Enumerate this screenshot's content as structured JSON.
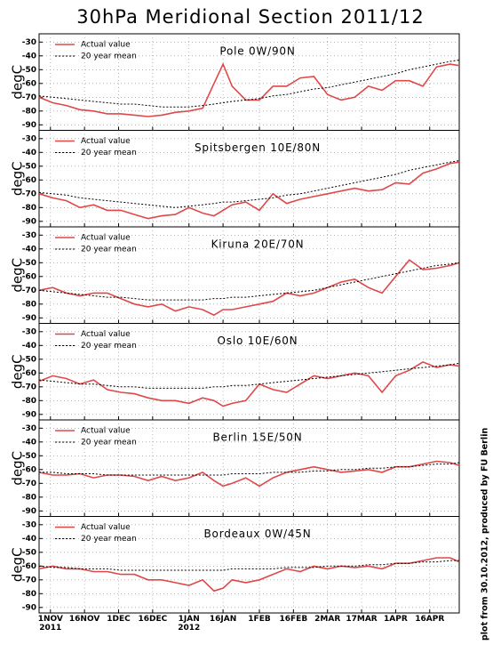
{
  "title": "30hPa Meridional Section 2011/12",
  "credit": "plot from 30.10.2012, produced by FU Berlin",
  "chart_data": [
    {
      "type": "line",
      "title": "Pole 0W/90N",
      "ylabel": "degC",
      "legend": "upper left",
      "grid": true,
      "x": [
        "2011-10-27",
        "2011-11-02",
        "2011-11-08",
        "2011-11-14",
        "2011-11-20",
        "2011-11-26",
        "2011-12-02",
        "2011-12-08",
        "2011-12-14",
        "2011-12-20",
        "2011-12-26",
        "2012-01-01",
        "2012-01-07",
        "2012-01-12",
        "2012-01-16",
        "2012-01-20",
        "2012-01-26",
        "2012-02-01",
        "2012-02-07",
        "2012-02-13",
        "2012-02-19",
        "2012-02-25",
        "2012-03-02",
        "2012-03-08",
        "2012-03-14",
        "2012-03-20",
        "2012-03-26",
        "2012-04-01",
        "2012-04-07",
        "2012-04-13",
        "2012-04-19",
        "2012-04-25",
        "2012-04-29"
      ],
      "xlim": [
        "2011-10-27",
        "2012-04-29"
      ],
      "xticks": [
        "2011-11-01",
        "2011-11-16",
        "2011-12-01",
        "2011-12-16",
        "2012-01-01",
        "2012-01-16",
        "2012-02-01",
        "2012-02-16",
        "2012-03-02",
        "2012-03-17",
        "2012-04-01",
        "2012-04-16"
      ],
      "ylim": [
        -94,
        -24
      ],
      "yticks": [
        -90,
        -80,
        -70,
        -60,
        -50,
        -40,
        -30
      ],
      "series": [
        {
          "name": "Actual value",
          "color": "#e04848",
          "linestyle": "solid",
          "values": [
            -70,
            -74,
            -76,
            -79,
            -80,
            -82,
            -82,
            -83,
            -84,
            -83,
            -81,
            -80,
            -78,
            -60,
            -46,
            -62,
            -72,
            -72,
            -62,
            -62,
            -56,
            -55,
            -68,
            -72,
            -70,
            -62,
            -65,
            -58,
            -58,
            -62,
            -48,
            -46,
            -47
          ]
        },
        {
          "name": "20 year mean",
          "color": "#000000",
          "linestyle": "dashed",
          "values": [
            -69,
            -70,
            -71,
            -72,
            -73,
            -74,
            -75,
            -75,
            -76,
            -77,
            -77,
            -77,
            -76,
            -75,
            -74,
            -73,
            -72,
            -71,
            -69,
            -68,
            -66,
            -64,
            -63,
            -61,
            -59,
            -57,
            -55,
            -53,
            -50,
            -48,
            -46,
            -44,
            -43
          ]
        }
      ]
    },
    {
      "type": "line",
      "title": "Spitsbergen 10E/80N",
      "ylabel": "degC",
      "legend": "upper left",
      "grid": true,
      "x": [
        "2011-10-27",
        "2011-11-02",
        "2011-11-08",
        "2011-11-14",
        "2011-11-20",
        "2011-11-26",
        "2011-12-02",
        "2011-12-08",
        "2011-12-14",
        "2011-12-20",
        "2011-12-26",
        "2012-01-01",
        "2012-01-07",
        "2012-01-12",
        "2012-01-16",
        "2012-01-20",
        "2012-01-26",
        "2012-02-01",
        "2012-02-07",
        "2012-02-13",
        "2012-02-19",
        "2012-02-25",
        "2012-03-02",
        "2012-03-08",
        "2012-03-14",
        "2012-03-20",
        "2012-03-26",
        "2012-04-01",
        "2012-04-07",
        "2012-04-13",
        "2012-04-19",
        "2012-04-25",
        "2012-04-29"
      ],
      "xlim": [
        "2011-10-27",
        "2012-04-29"
      ],
      "xticks": [
        "2011-11-01",
        "2011-11-16",
        "2011-12-01",
        "2011-12-16",
        "2012-01-01",
        "2012-01-16",
        "2012-02-01",
        "2012-02-16",
        "2012-03-02",
        "2012-03-17",
        "2012-04-01",
        "2012-04-16"
      ],
      "ylim": [
        -94,
        -24
      ],
      "yticks": [
        -90,
        -80,
        -70,
        -60,
        -50,
        -40,
        -30
      ],
      "series": [
        {
          "name": "Actual value",
          "color": "#e04848",
          "linestyle": "solid",
          "values": [
            -70,
            -73,
            -75,
            -80,
            -78,
            -82,
            -82,
            -85,
            -88,
            -86,
            -85,
            -80,
            -84,
            -86,
            -82,
            -78,
            -76,
            -82,
            -70,
            -77,
            -74,
            -72,
            -70,
            -68,
            -66,
            -68,
            -67,
            -62,
            -63,
            -55,
            -52,
            -48,
            -47
          ]
        },
        {
          "name": "20 year mean",
          "color": "#000000",
          "linestyle": "dashed",
          "values": [
            -69,
            -70,
            -71,
            -73,
            -74,
            -75,
            -76,
            -77,
            -78,
            -79,
            -80,
            -79,
            -78,
            -77,
            -76,
            -76,
            -75,
            -74,
            -73,
            -71,
            -70,
            -68,
            -66,
            -64,
            -62,
            -60,
            -58,
            -56,
            -53,
            -51,
            -49,
            -47,
            -46
          ]
        }
      ]
    },
    {
      "type": "line",
      "title": "Kiruna 20E/70N",
      "ylabel": "degC",
      "legend": "upper left",
      "grid": true,
      "x": [
        "2011-10-27",
        "2011-11-02",
        "2011-11-08",
        "2011-11-14",
        "2011-11-20",
        "2011-11-26",
        "2011-12-02",
        "2011-12-08",
        "2011-12-14",
        "2011-12-20",
        "2011-12-26",
        "2012-01-01",
        "2012-01-07",
        "2012-01-12",
        "2012-01-16",
        "2012-01-20",
        "2012-01-26",
        "2012-02-01",
        "2012-02-07",
        "2012-02-13",
        "2012-02-19",
        "2012-02-25",
        "2012-03-02",
        "2012-03-08",
        "2012-03-14",
        "2012-03-20",
        "2012-03-26",
        "2012-04-01",
        "2012-04-07",
        "2012-04-13",
        "2012-04-19",
        "2012-04-25",
        "2012-04-29"
      ],
      "xlim": [
        "2011-10-27",
        "2012-04-29"
      ],
      "xticks": [
        "2011-11-01",
        "2011-11-16",
        "2011-12-01",
        "2011-12-16",
        "2012-01-01",
        "2012-01-16",
        "2012-02-01",
        "2012-02-16",
        "2012-03-02",
        "2012-03-17",
        "2012-04-01",
        "2012-04-16"
      ],
      "ylim": [
        -94,
        -24
      ],
      "yticks": [
        -90,
        -80,
        -70,
        -60,
        -50,
        -40,
        -30
      ],
      "series": [
        {
          "name": "Actual value",
          "color": "#e04848",
          "linestyle": "solid",
          "values": [
            -70,
            -68,
            -72,
            -74,
            -72,
            -72,
            -76,
            -80,
            -82,
            -80,
            -85,
            -82,
            -84,
            -88,
            -84,
            -84,
            -82,
            -80,
            -78,
            -72,
            -74,
            -72,
            -68,
            -64,
            -62,
            -68,
            -72,
            -60,
            -48,
            -55,
            -54,
            -52,
            -50
          ]
        },
        {
          "name": "20 year mean",
          "color": "#000000",
          "linestyle": "dashed",
          "values": [
            -70,
            -71,
            -72,
            -73,
            -74,
            -75,
            -75,
            -76,
            -77,
            -77,
            -77,
            -77,
            -77,
            -76,
            -76,
            -75,
            -75,
            -74,
            -73,
            -72,
            -71,
            -70,
            -68,
            -66,
            -64,
            -62,
            -60,
            -58,
            -56,
            -54,
            -52,
            -51,
            -50
          ]
        }
      ]
    },
    {
      "type": "line",
      "title": "Oslo 10E/60N",
      "ylabel": "degC",
      "legend": "upper left",
      "grid": true,
      "x": [
        "2011-10-27",
        "2011-11-02",
        "2011-11-08",
        "2011-11-14",
        "2011-11-20",
        "2011-11-26",
        "2011-12-02",
        "2011-12-08",
        "2011-12-14",
        "2011-12-20",
        "2011-12-26",
        "2012-01-01",
        "2012-01-07",
        "2012-01-12",
        "2012-01-16",
        "2012-01-20",
        "2012-01-26",
        "2012-02-01",
        "2012-02-07",
        "2012-02-13",
        "2012-02-19",
        "2012-02-25",
        "2012-03-02",
        "2012-03-08",
        "2012-03-14",
        "2012-03-20",
        "2012-03-26",
        "2012-04-01",
        "2012-04-07",
        "2012-04-13",
        "2012-04-19",
        "2012-04-25",
        "2012-04-29"
      ],
      "xlim": [
        "2011-10-27",
        "2012-04-29"
      ],
      "xticks": [
        "2011-11-01",
        "2011-11-16",
        "2011-12-01",
        "2011-12-16",
        "2012-01-01",
        "2012-01-16",
        "2012-02-01",
        "2012-02-16",
        "2012-03-02",
        "2012-03-17",
        "2012-04-01",
        "2012-04-16"
      ],
      "ylim": [
        -94,
        -24
      ],
      "yticks": [
        -90,
        -80,
        -70,
        -60,
        -50,
        -40,
        -30
      ],
      "series": [
        {
          "name": "Actual value",
          "color": "#e04848",
          "linestyle": "solid",
          "values": [
            -66,
            -62,
            -64,
            -68,
            -65,
            -72,
            -74,
            -75,
            -78,
            -80,
            -80,
            -82,
            -78,
            -80,
            -84,
            -82,
            -80,
            -68,
            -72,
            -74,
            -68,
            -62,
            -64,
            -62,
            -60,
            -62,
            -74,
            -62,
            -58,
            -52,
            -56,
            -54,
            -55
          ]
        },
        {
          "name": "20 year mean",
          "color": "#000000",
          "linestyle": "dashed",
          "values": [
            -65,
            -66,
            -67,
            -68,
            -68,
            -69,
            -70,
            -70,
            -71,
            -71,
            -71,
            -71,
            -71,
            -70,
            -70,
            -69,
            -69,
            -68,
            -67,
            -66,
            -65,
            -64,
            -63,
            -62,
            -61,
            -60,
            -59,
            -58,
            -57,
            -56,
            -55,
            -54,
            -53
          ]
        }
      ]
    },
    {
      "type": "line",
      "title": "Berlin 15E/50N",
      "ylabel": "degC",
      "legend": "upper left",
      "grid": true,
      "x": [
        "2011-10-27",
        "2011-11-02",
        "2011-11-08",
        "2011-11-14",
        "2011-11-20",
        "2011-11-26",
        "2011-12-02",
        "2011-12-08",
        "2011-12-14",
        "2011-12-20",
        "2011-12-26",
        "2012-01-01",
        "2012-01-07",
        "2012-01-12",
        "2012-01-16",
        "2012-01-20",
        "2012-01-26",
        "2012-02-01",
        "2012-02-07",
        "2012-02-13",
        "2012-02-19",
        "2012-02-25",
        "2012-03-02",
        "2012-03-08",
        "2012-03-14",
        "2012-03-20",
        "2012-03-26",
        "2012-04-01",
        "2012-04-07",
        "2012-04-13",
        "2012-04-19",
        "2012-04-25",
        "2012-04-29"
      ],
      "xlim": [
        "2011-10-27",
        "2012-04-29"
      ],
      "xticks": [
        "2011-11-01",
        "2011-11-16",
        "2011-12-01",
        "2011-12-16",
        "2012-01-01",
        "2012-01-16",
        "2012-02-01",
        "2012-02-16",
        "2012-03-02",
        "2012-03-17",
        "2012-04-01",
        "2012-04-16"
      ],
      "ylim": [
        -94,
        -24
      ],
      "yticks": [
        -90,
        -80,
        -70,
        -60,
        -50,
        -40,
        -30
      ],
      "series": [
        {
          "name": "Actual value",
          "color": "#e04848",
          "linestyle": "solid",
          "values": [
            -62,
            -64,
            -64,
            -63,
            -66,
            -64,
            -64,
            -65,
            -68,
            -65,
            -68,
            -66,
            -62,
            -68,
            -72,
            -70,
            -66,
            -72,
            -66,
            -62,
            -60,
            -58,
            -60,
            -62,
            -61,
            -60,
            -62,
            -58,
            -58,
            -56,
            -54,
            -55,
            -57
          ]
        },
        {
          "name": "20 year mean",
          "color": "#000000",
          "linestyle": "dashed",
          "values": [
            -62,
            -62,
            -63,
            -63,
            -63,
            -64,
            -64,
            -64,
            -64,
            -64,
            -64,
            -64,
            -64,
            -64,
            -64,
            -63,
            -63,
            -63,
            -62,
            -62,
            -62,
            -61,
            -61,
            -60,
            -60,
            -59,
            -59,
            -58,
            -58,
            -57,
            -56,
            -56,
            -55
          ]
        }
      ]
    },
    {
      "type": "line",
      "title": "Bordeaux 0W/45N",
      "ylabel": "degC",
      "legend": "upper left",
      "grid": true,
      "x": [
        "2011-10-27",
        "2011-11-02",
        "2011-11-08",
        "2011-11-14",
        "2011-11-20",
        "2011-11-26",
        "2011-12-02",
        "2011-12-08",
        "2011-12-14",
        "2011-12-20",
        "2011-12-26",
        "2012-01-01",
        "2012-01-07",
        "2012-01-12",
        "2012-01-16",
        "2012-01-20",
        "2012-01-26",
        "2012-02-01",
        "2012-02-07",
        "2012-02-13",
        "2012-02-19",
        "2012-02-25",
        "2012-03-02",
        "2012-03-08",
        "2012-03-14",
        "2012-03-20",
        "2012-03-26",
        "2012-04-01",
        "2012-04-07",
        "2012-04-13",
        "2012-04-19",
        "2012-04-25",
        "2012-04-29"
      ],
      "xlim": [
        "2011-10-27",
        "2012-04-29"
      ],
      "xticks": [
        {
          "value": "2011-11-01",
          "label": "1NOV\n2011"
        },
        {
          "value": "2011-11-16",
          "label": "16NOV"
        },
        {
          "value": "2011-12-01",
          "label": "1DEC"
        },
        {
          "value": "2011-12-16",
          "label": "16DEC"
        },
        {
          "value": "2012-01-01",
          "label": "1JAN\n2012"
        },
        {
          "value": "2012-01-16",
          "label": "16JAN"
        },
        {
          "value": "2012-02-01",
          "label": "1FEB"
        },
        {
          "value": "2012-02-16",
          "label": "16FEB"
        },
        {
          "value": "2012-03-02",
          "label": "2MAR"
        },
        {
          "value": "2012-03-17",
          "label": "17MAR"
        },
        {
          "value": "2012-04-01",
          "label": "1APR"
        },
        {
          "value": "2012-04-16",
          "label": "16APR"
        }
      ],
      "ylim": [
        -94,
        -24
      ],
      "yticks": [
        -90,
        -80,
        -70,
        -60,
        -50,
        -40,
        -30
      ],
      "series": [
        {
          "name": "Actual value",
          "color": "#e04848",
          "linestyle": "solid",
          "values": [
            -62,
            -60,
            -62,
            -62,
            -64,
            -64,
            -66,
            -66,
            -70,
            -70,
            -72,
            -74,
            -70,
            -78,
            -76,
            -70,
            -72,
            -70,
            -66,
            -62,
            -64,
            -60,
            -62,
            -60,
            -61,
            -60,
            -62,
            -58,
            -58,
            -56,
            -54,
            -54,
            -57
          ]
        },
        {
          "name": "20 year mean",
          "color": "#000000",
          "linestyle": "dashed",
          "values": [
            -60,
            -61,
            -61,
            -62,
            -62,
            -62,
            -63,
            -63,
            -63,
            -63,
            -63,
            -63,
            -63,
            -63,
            -63,
            -62,
            -62,
            -62,
            -62,
            -61,
            -61,
            -61,
            -60,
            -60,
            -60,
            -59,
            -59,
            -58,
            -58,
            -57,
            -57,
            -56,
            -56
          ]
        }
      ]
    }
  ]
}
